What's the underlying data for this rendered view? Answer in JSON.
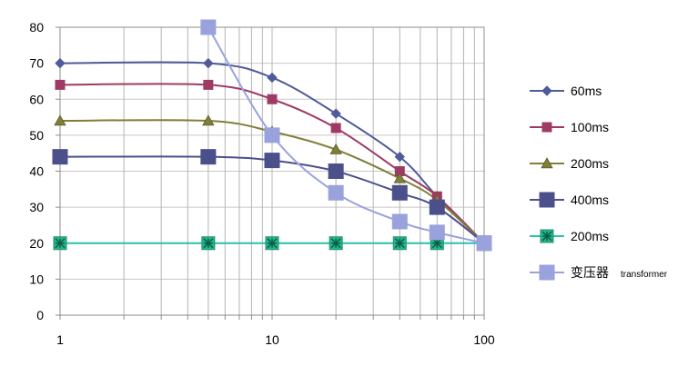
{
  "chart_data": {
    "type": "line",
    "x_scale": "log",
    "xlim": [
      1,
      100
    ],
    "ylim": [
      0,
      80
    ],
    "grid": true,
    "legend_position": "right",
    "x_tick_labels": [
      "1",
      "10",
      "100"
    ],
    "y_tick_labels": [
      "0",
      "10",
      "20",
      "30",
      "40",
      "50",
      "60",
      "70",
      "80"
    ],
    "series": [
      {
        "name": "60ms",
        "color": "#4F5B9A",
        "marker": "diamond",
        "x": [
          1,
          5,
          10,
          20,
          40,
          60,
          100
        ],
        "y": [
          70,
          70,
          66,
          56,
          44,
          33,
          20
        ]
      },
      {
        "name": "100ms",
        "color": "#9E3A64",
        "marker": "square",
        "x": [
          1,
          5,
          10,
          20,
          40,
          60,
          100
        ],
        "y": [
          64,
          64,
          60,
          52,
          40,
          33,
          20
        ]
      },
      {
        "name": "200ms",
        "color": "#7F7F3A",
        "marker": "triangle",
        "x": [
          1,
          5,
          10,
          20,
          40,
          60,
          100
        ],
        "y": [
          54,
          54,
          51,
          46,
          38,
          32,
          20
        ]
      },
      {
        "name": "400ms",
        "color": "#4B4F8A",
        "marker": "bigsquare",
        "x": [
          1,
          5,
          10,
          20,
          40,
          60,
          100
        ],
        "y": [
          44,
          44,
          43,
          40,
          34,
          30,
          20
        ]
      },
      {
        "name": "200ms",
        "color": "#2BC0B0",
        "marker": "star",
        "x": [
          1,
          5,
          10,
          20,
          40,
          60,
          100
        ],
        "y": [
          20,
          20,
          20,
          20,
          20,
          20,
          20
        ]
      },
      {
        "name": "变压器",
        "name_suffix": "transformer",
        "color": "#9AA2DD",
        "marker": "bigsquare",
        "x": [
          5,
          10,
          20,
          40,
          60,
          100
        ],
        "y": [
          80,
          50,
          34,
          26,
          23,
          20
        ]
      }
    ]
  }
}
